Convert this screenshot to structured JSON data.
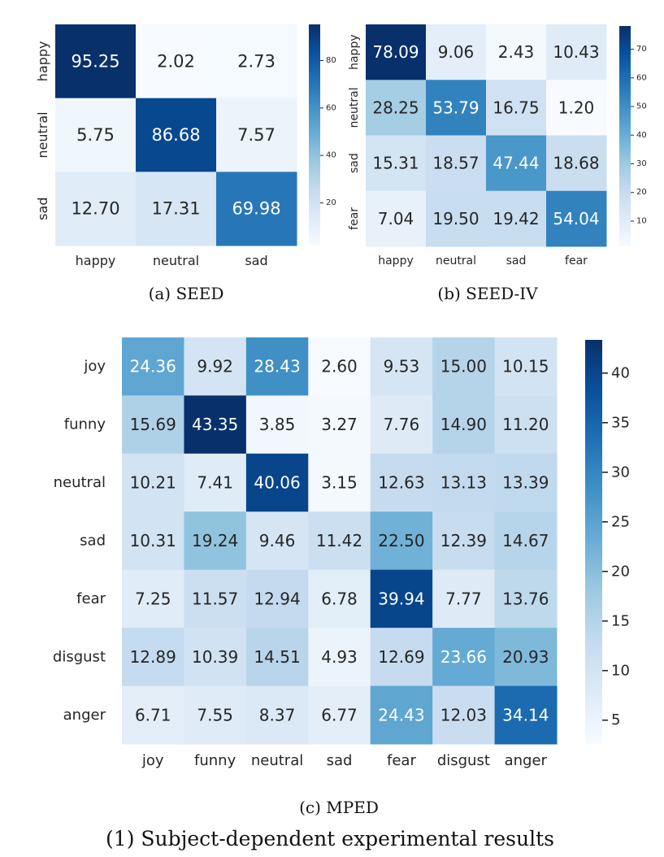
{
  "figure_caption": "(1) Subject-dependent experimental results",
  "chart_data": [
    {
      "type": "heatmap",
      "caption": "(a) SEED",
      "rows": [
        "happy",
        "neutral",
        "sad"
      ],
      "cols": [
        "happy",
        "neutral",
        "sad"
      ],
      "values": [
        [
          95.25,
          2.02,
          2.73
        ],
        [
          5.75,
          86.68,
          7.57
        ],
        [
          12.7,
          17.31,
          69.98
        ]
      ],
      "value_labels": [
        [
          "95.25",
          "2.02",
          "2.73"
        ],
        [
          "5.75",
          "86.68",
          "7.57"
        ],
        [
          "12.70",
          "17.31",
          "69.98"
        ]
      ],
      "colorbar_range": [
        2.02,
        95.25
      ],
      "colorbar_ticks": [
        20,
        40,
        60,
        80
      ],
      "colormap": "Blues"
    },
    {
      "type": "heatmap",
      "caption": "(b) SEED-IV",
      "rows": [
        "happy",
        "neutral",
        "sad",
        "fear"
      ],
      "cols": [
        "happy",
        "neutral",
        "sad",
        "fear"
      ],
      "values": [
        [
          78.09,
          9.06,
          2.43,
          10.43
        ],
        [
          28.25,
          53.79,
          16.75,
          1.2
        ],
        [
          15.31,
          18.57,
          47.44,
          18.68
        ],
        [
          7.04,
          19.5,
          19.42,
          54.04
        ]
      ],
      "value_labels": [
        [
          "78.09",
          "9.06",
          "2.43",
          "10.43"
        ],
        [
          "28.25",
          "53.79",
          "16.75",
          "1.20"
        ],
        [
          "15.31",
          "18.57",
          "47.44",
          "18.68"
        ],
        [
          "7.04",
          "19.50",
          "19.42",
          "54.04"
        ]
      ],
      "colorbar_range": [
        1.2,
        78.09
      ],
      "colorbar_ticks": [
        10,
        20,
        30,
        40,
        50,
        60,
        70
      ],
      "colormap": "Blues"
    },
    {
      "type": "heatmap",
      "caption": "(c) MPED",
      "rows": [
        "joy",
        "funny",
        "neutral",
        "sad",
        "fear",
        "disgust",
        "anger"
      ],
      "cols": [
        "joy",
        "funny",
        "neutral",
        "sad",
        "fear",
        "disgust",
        "anger"
      ],
      "values": [
        [
          24.36,
          9.92,
          28.43,
          2.6,
          9.53,
          15.0,
          10.15
        ],
        [
          15.69,
          43.35,
          3.85,
          3.27,
          7.76,
          14.9,
          11.2
        ],
        [
          10.21,
          7.41,
          40.06,
          3.15,
          12.63,
          13.13,
          13.39
        ],
        [
          10.31,
          19.24,
          9.46,
          11.42,
          22.5,
          12.39,
          14.67
        ],
        [
          7.25,
          11.57,
          12.94,
          6.78,
          39.94,
          7.77,
          13.76
        ],
        [
          12.89,
          10.39,
          14.51,
          4.93,
          12.69,
          23.66,
          20.93
        ],
        [
          6.71,
          7.55,
          8.37,
          6.77,
          24.43,
          12.03,
          34.14
        ]
      ],
      "value_labels": [
        [
          "24.36",
          "9.92",
          "28.43",
          "2.60",
          "9.53",
          "15.00",
          "10.15"
        ],
        [
          "15.69",
          "43.35",
          "3.85",
          "3.27",
          "7.76",
          "14.90",
          "11.20"
        ],
        [
          "10.21",
          "7.41",
          "40.06",
          "3.15",
          "12.63",
          "13.13",
          "13.39"
        ],
        [
          "10.31",
          "19.24",
          "9.46",
          "11.42",
          "22.50",
          "12.39",
          "14.67"
        ],
        [
          "7.25",
          "11.57",
          "12.94",
          "6.78",
          "39.94",
          "7.77",
          "13.76"
        ],
        [
          "12.89",
          "10.39",
          "14.51",
          "4.93",
          "12.69",
          "23.66",
          "20.93"
        ],
        [
          "6.71",
          "7.55",
          "8.37",
          "6.77",
          "24.43",
          "12.03",
          "34.14"
        ]
      ],
      "colorbar_range": [
        2.6,
        43.35
      ],
      "colorbar_ticks": [
        5,
        10,
        15,
        20,
        25,
        30,
        35,
        40
      ],
      "colormap": "Blues"
    }
  ]
}
